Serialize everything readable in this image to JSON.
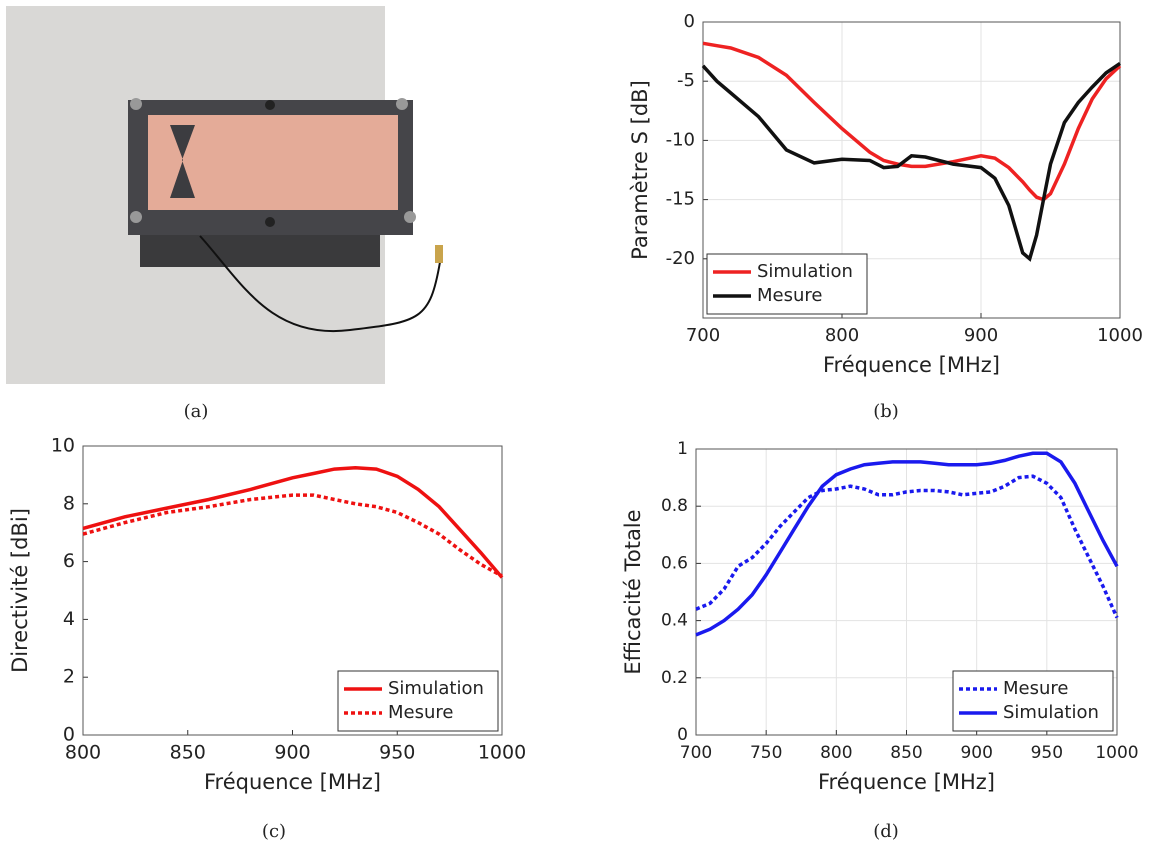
{
  "captions": [
    "(a)",
    "(b)",
    "(c)",
    "(d)"
  ],
  "chart_data": [
    {
      "type": "line",
      "xlabel": "Fréquence [MHz]",
      "ylabel": "Paramètre S [dB]",
      "x": [
        700,
        710,
        720,
        740,
        760,
        780,
        800,
        820,
        830,
        840,
        850,
        860,
        880,
        900,
        910,
        920,
        930,
        935,
        940,
        945,
        950,
        960,
        970,
        980,
        990,
        1000
      ],
      "series": [
        {
          "name": "Simulation",
          "color": "#ee2222",
          "style": "solid",
          "values": [
            -1.8,
            -2,
            -2.2,
            -3,
            -4.5,
            -6.8,
            -9,
            -11,
            -11.7,
            -12,
            -12.2,
            -12.2,
            -11.8,
            -11.3,
            -11.5,
            -12.3,
            -13.5,
            -14.2,
            -14.8,
            -15,
            -14.5,
            -12,
            -9,
            -6.5,
            -4.8,
            -3.7
          ]
        },
        {
          "name": "Mesure",
          "color": "#111111",
          "style": "solid",
          "values": [
            -3.7,
            -5,
            -6,
            -8,
            -10.8,
            -11.9,
            -11.6,
            -11.7,
            -12.3,
            -12.2,
            -11.3,
            -11.4,
            -12,
            -12.3,
            -13.2,
            -15.5,
            -19.5,
            -20,
            -18,
            -15,
            -12,
            -8.5,
            -6.8,
            -5.5,
            -4.3,
            -3.5
          ]
        }
      ],
      "xlim": [
        700,
        1000
      ],
      "xticks": [
        700,
        800,
        900,
        1000
      ],
      "ylim": [
        -25,
        0
      ],
      "yticks": [
        -20,
        -15,
        -10,
        -5,
        0
      ],
      "grid": true,
      "legend": "lower left"
    },
    {
      "type": "line",
      "xlabel": "Fréquence [MHz]",
      "ylabel": "Directivité  [dBi]",
      "x": [
        800,
        820,
        840,
        860,
        880,
        900,
        910,
        920,
        930,
        940,
        950,
        960,
        970,
        980,
        990,
        1000
      ],
      "series": [
        {
          "name": "Simulation",
          "color": "#ee1111",
          "style": "solid",
          "values": [
            7.15,
            7.55,
            7.85,
            8.15,
            8.5,
            8.9,
            9.05,
            9.2,
            9.25,
            9.2,
            8.95,
            8.5,
            7.9,
            7.1,
            6.3,
            5.45
          ]
        },
        {
          "name": "Mesure",
          "color": "#ee1111",
          "style": "dotted",
          "values": [
            6.95,
            7.35,
            7.7,
            7.9,
            8.15,
            8.3,
            8.3,
            8.15,
            8,
            7.9,
            7.7,
            7.35,
            6.95,
            6.4,
            5.9,
            5.5
          ]
        }
      ],
      "xlim": [
        800,
        1000
      ],
      "xticks": [
        800,
        850,
        900,
        950,
        1000
      ],
      "ylim": [
        0,
        10
      ],
      "yticks": [
        0,
        2,
        4,
        6,
        8,
        10
      ],
      "grid": false,
      "legend": "lower right"
    },
    {
      "type": "line",
      "xlabel": "Fréquence [MHz]",
      "ylabel": "Efficacité Totale",
      "x": [
        700,
        710,
        720,
        730,
        740,
        750,
        760,
        770,
        780,
        790,
        800,
        810,
        820,
        830,
        840,
        850,
        860,
        870,
        880,
        890,
        900,
        910,
        920,
        930,
        940,
        950,
        960,
        970,
        980,
        990,
        1000
      ],
      "series": [
        {
          "name": "Mesure",
          "color": "#1a1aee",
          "style": "dotted",
          "values": [
            0.44,
            0.46,
            0.51,
            0.59,
            0.62,
            0.67,
            0.73,
            0.78,
            0.83,
            0.855,
            0.86,
            0.87,
            0.86,
            0.84,
            0.84,
            0.85,
            0.855,
            0.855,
            0.85,
            0.84,
            0.845,
            0.85,
            0.87,
            0.9,
            0.905,
            0.88,
            0.83,
            0.72,
            0.62,
            0.52,
            0.41
          ]
        },
        {
          "name": "Simulation",
          "color": "#1a1aee",
          "style": "solid",
          "values": [
            0.35,
            0.37,
            0.4,
            0.44,
            0.49,
            0.56,
            0.64,
            0.72,
            0.8,
            0.87,
            0.91,
            0.93,
            0.945,
            0.95,
            0.955,
            0.955,
            0.955,
            0.95,
            0.945,
            0.945,
            0.945,
            0.95,
            0.96,
            0.975,
            0.985,
            0.985,
            0.955,
            0.88,
            0.78,
            0.68,
            0.59
          ]
        }
      ],
      "xlim": [
        700,
        1000
      ],
      "xticks": [
        700,
        750,
        800,
        850,
        900,
        950,
        1000
      ],
      "ylim": [
        0,
        1
      ],
      "yticks": [
        0,
        0.2,
        0.4,
        0.6,
        0.8,
        1
      ],
      "grid": true,
      "legend": "lower right"
    }
  ]
}
